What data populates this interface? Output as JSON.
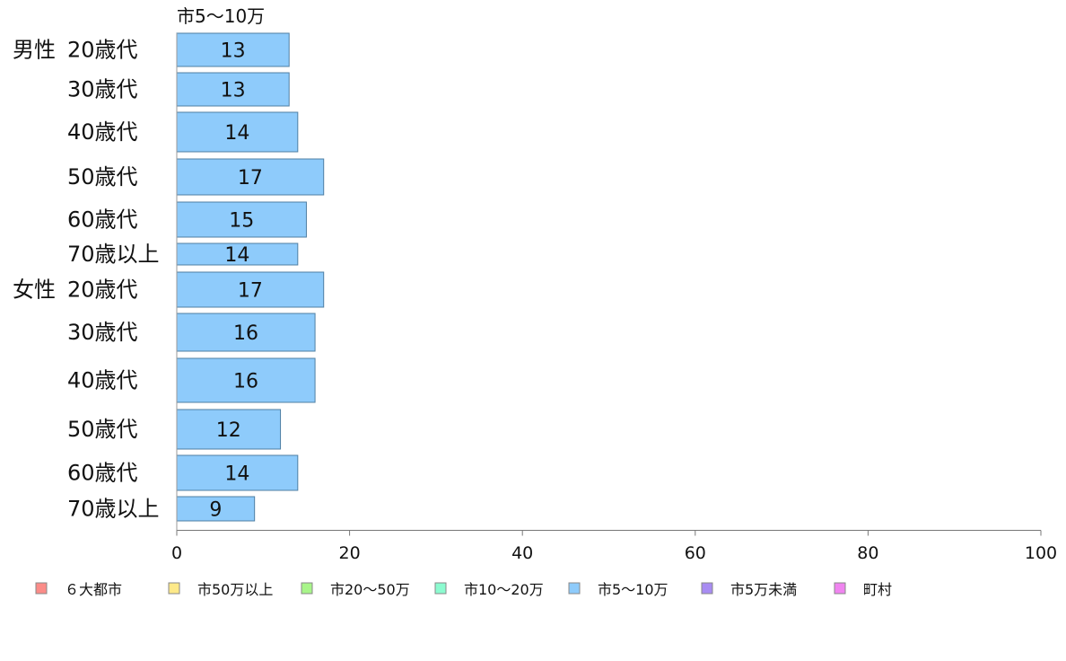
{
  "chart_data": {
    "type": "bar",
    "orientation": "horizontal",
    "series_header": "市5〜10万",
    "groups": [
      {
        "label": "男性",
        "categories": [
          "20歳代",
          "30歳代",
          "40歳代",
          "50歳代",
          "60歳代",
          "70歳以上"
        ]
      },
      {
        "label": "女性",
        "categories": [
          "20歳代",
          "30歳代",
          "40歳代",
          "50歳代",
          "60歳代",
          "70歳以上"
        ]
      }
    ],
    "values": [
      13,
      13,
      14,
      17,
      15,
      14,
      17,
      16,
      16,
      12,
      14,
      9
    ],
    "data_labels": [
      "13",
      "13",
      "14",
      "17",
      "15",
      "14",
      "17",
      "16",
      "16",
      "12",
      "14",
      "9"
    ],
    "xlim": [
      0,
      100
    ],
    "x_ticks": [
      "0",
      "20",
      "40",
      "60",
      "80",
      "100"
    ],
    "grid": false,
    "legend_position": "bottom",
    "bar_color": "#8ecbfb",
    "legend": [
      {
        "label": "６大都市",
        "color": "#fb8c88"
      },
      {
        "label": "市50万以上",
        "color": "#fde989"
      },
      {
        "label": "市20〜50万",
        "color": "#a8f58a"
      },
      {
        "label": "市10〜20万",
        "color": "#8cfbd0"
      },
      {
        "label": "市5〜10万",
        "color": "#8ecbfb"
      },
      {
        "label": "市5万未満",
        "color": "#a88cf2"
      },
      {
        "label": "町村",
        "color": "#f084f0"
      }
    ]
  }
}
